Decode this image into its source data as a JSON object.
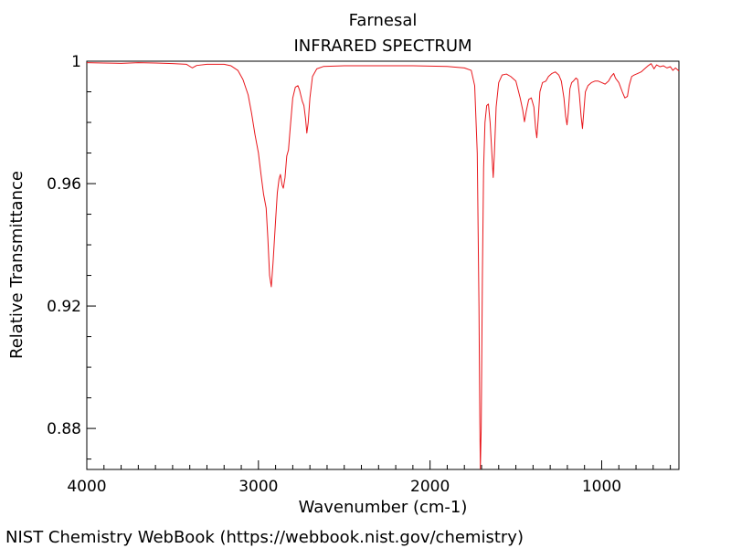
{
  "chart_data": {
    "type": "line",
    "title": "Farnesal",
    "subtitle": "INFRARED SPECTRUM",
    "xlabel": "Wavenumber (cm-1)",
    "ylabel": "Relative Transmittance",
    "xlim": [
      4000,
      550
    ],
    "ylim": [
      0.8666,
      1.0
    ],
    "x_ticks": [
      4000,
      3000,
      2000,
      1000
    ],
    "x_tick_labels": [
      "4000",
      "3000",
      "2000",
      "1000"
    ],
    "y_ticks": [
      1.0,
      0.96,
      0.92,
      0.88
    ],
    "y_tick_labels": [
      "1",
      "0.96",
      "0.92",
      "0.88"
    ],
    "grid": false,
    "series": [
      {
        "color": "#e8161b",
        "points": [
          [
            4000,
            0.9995
          ],
          [
            3900,
            0.9994
          ],
          [
            3800,
            0.9993
          ],
          [
            3700,
            0.9995
          ],
          [
            3600,
            0.9994
          ],
          [
            3500,
            0.9992
          ],
          [
            3420,
            0.999
          ],
          [
            3385,
            0.9978
          ],
          [
            3360,
            0.9986
          ],
          [
            3300,
            0.999
          ],
          [
            3250,
            0.999
          ],
          [
            3200,
            0.999
          ],
          [
            3160,
            0.9985
          ],
          [
            3120,
            0.997
          ],
          [
            3090,
            0.994
          ],
          [
            3060,
            0.989
          ],
          [
            3040,
            0.983
          ],
          [
            3020,
            0.976
          ],
          [
            3000,
            0.97
          ],
          [
            2985,
            0.963
          ],
          [
            2970,
            0.9565
          ],
          [
            2955,
            0.952
          ],
          [
            2945,
            0.942
          ],
          [
            2935,
            0.93
          ],
          [
            2925,
            0.9263
          ],
          [
            2915,
            0.934
          ],
          [
            2900,
            0.948
          ],
          [
            2890,
            0.957
          ],
          [
            2880,
            0.9615
          ],
          [
            2872,
            0.963
          ],
          [
            2862,
            0.9595
          ],
          [
            2855,
            0.9585
          ],
          [
            2845,
            0.962
          ],
          [
            2835,
            0.969
          ],
          [
            2825,
            0.971
          ],
          [
            2815,
            0.978
          ],
          [
            2800,
            0.988
          ],
          [
            2785,
            0.9915
          ],
          [
            2770,
            0.992
          ],
          [
            2760,
            0.9905
          ],
          [
            2745,
            0.987
          ],
          [
            2735,
            0.9855
          ],
          [
            2725,
            0.981
          ],
          [
            2718,
            0.9765
          ],
          [
            2710,
            0.98
          ],
          [
            2700,
            0.988
          ],
          [
            2685,
            0.995
          ],
          [
            2660,
            0.9975
          ],
          [
            2620,
            0.9983
          ],
          [
            2500,
            0.9985
          ],
          [
            2300,
            0.9985
          ],
          [
            2100,
            0.9985
          ],
          [
            1900,
            0.9983
          ],
          [
            1800,
            0.9978
          ],
          [
            1760,
            0.997
          ],
          [
            1740,
            0.992
          ],
          [
            1725,
            0.97
          ],
          [
            1715,
            0.92
          ],
          [
            1710,
            0.882
          ],
          [
            1707,
            0.8668
          ],
          [
            1702,
            0.88
          ],
          [
            1695,
            0.93
          ],
          [
            1688,
            0.965
          ],
          [
            1680,
            0.98
          ],
          [
            1670,
            0.9855
          ],
          [
            1660,
            0.986
          ],
          [
            1650,
            0.98
          ],
          [
            1640,
            0.97
          ],
          [
            1632,
            0.962
          ],
          [
            1625,
            0.97
          ],
          [
            1615,
            0.985
          ],
          [
            1600,
            0.993
          ],
          [
            1580,
            0.9955
          ],
          [
            1555,
            0.9958
          ],
          [
            1530,
            0.995
          ],
          [
            1500,
            0.9935
          ],
          [
            1475,
            0.988
          ],
          [
            1460,
            0.984
          ],
          [
            1450,
            0.9802
          ],
          [
            1440,
            0.9835
          ],
          [
            1425,
            0.9875
          ],
          [
            1410,
            0.988
          ],
          [
            1395,
            0.985
          ],
          [
            1385,
            0.978
          ],
          [
            1378,
            0.975
          ],
          [
            1370,
            0.981
          ],
          [
            1360,
            0.99
          ],
          [
            1345,
            0.993
          ],
          [
            1325,
            0.9935
          ],
          [
            1310,
            0.995
          ],
          [
            1290,
            0.996
          ],
          [
            1270,
            0.9965
          ],
          [
            1250,
            0.9955
          ],
          [
            1235,
            0.9935
          ],
          [
            1220,
            0.988
          ],
          [
            1210,
            0.982
          ],
          [
            1202,
            0.9792
          ],
          [
            1195,
            0.983
          ],
          [
            1185,
            0.991
          ],
          [
            1175,
            0.993
          ],
          [
            1165,
            0.9935
          ],
          [
            1150,
            0.9945
          ],
          [
            1140,
            0.994
          ],
          [
            1130,
            0.989
          ],
          [
            1120,
            0.982
          ],
          [
            1112,
            0.978
          ],
          [
            1105,
            0.983
          ],
          [
            1095,
            0.99
          ],
          [
            1080,
            0.992
          ],
          [
            1060,
            0.993
          ],
          [
            1040,
            0.9935
          ],
          [
            1020,
            0.9935
          ],
          [
            1000,
            0.993
          ],
          [
            980,
            0.9925
          ],
          [
            960,
            0.9935
          ],
          [
            945,
            0.995
          ],
          [
            930,
            0.996
          ],
          [
            920,
            0.9945
          ],
          [
            900,
            0.993
          ],
          [
            880,
            0.99
          ],
          [
            865,
            0.988
          ],
          [
            850,
            0.9885
          ],
          [
            840,
            0.992
          ],
          [
            825,
            0.995
          ],
          [
            810,
            0.9955
          ],
          [
            790,
            0.996
          ],
          [
            770,
            0.9965
          ],
          [
            750,
            0.9975
          ],
          [
            730,
            0.9985
          ],
          [
            712,
            0.9992
          ],
          [
            695,
            0.9975
          ],
          [
            680,
            0.9988
          ],
          [
            660,
            0.9982
          ],
          [
            640,
            0.9985
          ],
          [
            620,
            0.9978
          ],
          [
            600,
            0.9982
          ],
          [
            585,
            0.997
          ],
          [
            570,
            0.9978
          ],
          [
            550,
            0.9968
          ]
        ]
      }
    ]
  },
  "footer": {
    "credit": "NIST Chemistry WebBook (https://webbook.nist.gov/chemistry)"
  }
}
